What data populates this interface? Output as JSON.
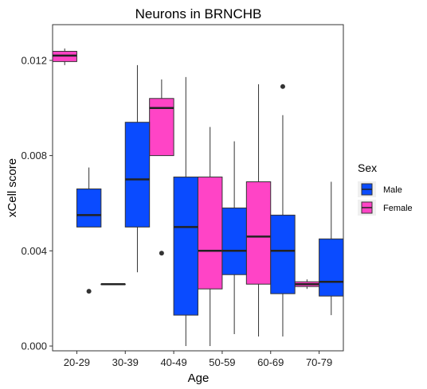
{
  "chart_data": {
    "type": "boxplot",
    "title": "Neurons in BRNCHB",
    "xlabel": "Age",
    "ylabel": "xCell score",
    "categories": [
      "20-29",
      "30-39",
      "40-49",
      "50-59",
      "60-69",
      "70-79"
    ],
    "yticks": [
      "0.000",
      "0.004",
      "0.008",
      "0.012"
    ],
    "ylim": [
      -0.0002,
      0.0135
    ],
    "legend": {
      "title": "Sex",
      "position": "right",
      "entries": [
        {
          "name": "Male",
          "color": "#0a4bff"
        },
        {
          "name": "Female",
          "color": "#ff44c6"
        }
      ]
    },
    "series": [
      {
        "name": "Female",
        "color": "#ff44c6",
        "boxes": [
          {
            "category": "20-29",
            "whisker_low": 0.0118,
            "q1": 0.01195,
            "median": 0.0122,
            "q3": 0.01238,
            "whisker_high": 0.0125,
            "outliers": []
          },
          {
            "category": "30-39",
            "whisker_low": 0.0026,
            "q1": 0.0026,
            "median": 0.0026,
            "q3": 0.0026,
            "whisker_high": 0.0026,
            "outliers": []
          },
          {
            "category": "40-49",
            "whisker_low": 0.008,
            "q1": 0.008,
            "median": 0.01,
            "q3": 0.0104,
            "whisker_high": 0.0112,
            "outliers": [
              0.0039
            ]
          },
          {
            "category": "50-59",
            "whisker_low": 0.0,
            "q1": 0.0024,
            "median": 0.004,
            "q3": 0.0071,
            "whisker_high": 0.0092,
            "outliers": []
          },
          {
            "category": "60-69",
            "whisker_low": 0.0004,
            "q1": 0.0026,
            "median": 0.0046,
            "q3": 0.0069,
            "whisker_high": 0.011,
            "outliers": []
          },
          {
            "category": "70-79",
            "whisker_low": 0.0024,
            "q1": 0.0025,
            "median": 0.0026,
            "q3": 0.0027,
            "whisker_high": 0.0028,
            "outliers": []
          }
        ]
      },
      {
        "name": "Male",
        "color": "#0a4bff",
        "boxes": [
          {
            "category": "20-29",
            "whisker_low": 0.005,
            "q1": 0.005,
            "median": 0.0055,
            "q3": 0.0066,
            "whisker_high": 0.0075,
            "outliers": [
              0.0023
            ]
          },
          {
            "category": "30-39",
            "whisker_low": 0.0031,
            "q1": 0.005,
            "median": 0.007,
            "q3": 0.0094,
            "whisker_high": 0.0118,
            "outliers": []
          },
          {
            "category": "40-49",
            "whisker_low": 0.0,
            "q1": 0.0013,
            "median": 0.005,
            "q3": 0.0071,
            "whisker_high": 0.0113,
            "outliers": []
          },
          {
            "category": "50-59",
            "whisker_low": 0.0005,
            "q1": 0.003,
            "median": 0.004,
            "q3": 0.0058,
            "whisker_high": 0.0086,
            "outliers": []
          },
          {
            "category": "60-69",
            "whisker_low": 0.0004,
            "q1": 0.0022,
            "median": 0.004,
            "q3": 0.0055,
            "whisker_high": 0.0097,
            "outliers": [
              0.0109
            ]
          },
          {
            "category": "70-79",
            "whisker_low": 0.0013,
            "q1": 0.0021,
            "median": 0.0027,
            "q3": 0.0045,
            "whisker_high": 0.0069,
            "outliers": []
          }
        ]
      }
    ],
    "grid": false
  }
}
